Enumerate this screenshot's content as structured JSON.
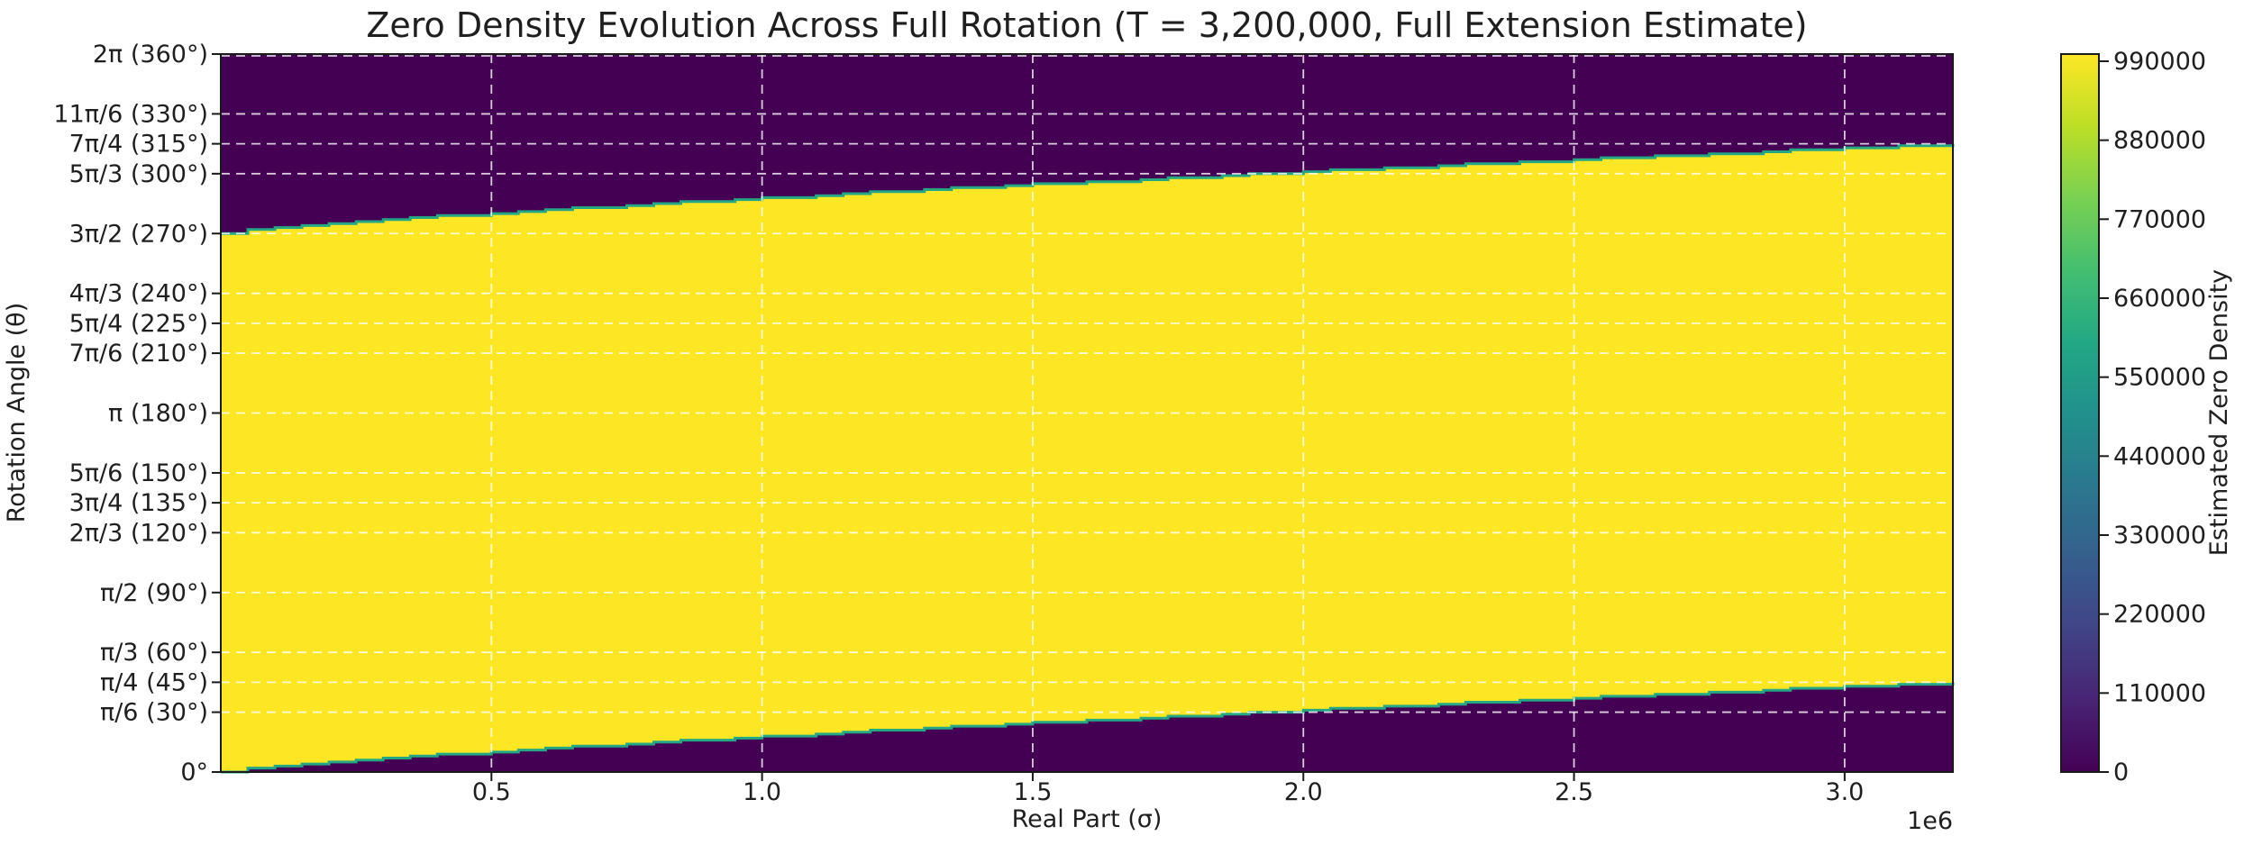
{
  "chart_data": {
    "type": "heatmap",
    "title": "Zero Density Evolution Across Full Rotation (T = 3,200,000, Full Extension Estimate)",
    "xlabel": "Real Part (σ)",
    "ylabel": "Rotation Angle (θ)",
    "x_axis": {
      "min": 0,
      "max": 3200000,
      "offset_label": "1e6",
      "ticks": [
        {
          "value": 500000,
          "label": "0.5"
        },
        {
          "value": 1000000,
          "label": "1.0"
        },
        {
          "value": 1500000,
          "label": "1.5"
        },
        {
          "value": 2000000,
          "label": "2.0"
        },
        {
          "value": 2500000,
          "label": "2.5"
        },
        {
          "value": 3000000,
          "label": "3.0"
        }
      ]
    },
    "y_axis": {
      "min_deg": 0,
      "max_deg": 360,
      "ticks": [
        {
          "deg": 0,
          "label": "0°"
        },
        {
          "deg": 30,
          "label": "π/6 (30°)"
        },
        {
          "deg": 45,
          "label": "π/4 (45°)"
        },
        {
          "deg": 60,
          "label": "π/3 (60°)"
        },
        {
          "deg": 90,
          "label": "π/2 (90°)"
        },
        {
          "deg": 120,
          "label": "2π/3 (120°)"
        },
        {
          "deg": 135,
          "label": "3π/4 (135°)"
        },
        {
          "deg": 150,
          "label": "5π/6 (150°)"
        },
        {
          "deg": 180,
          "label": "π (180°)"
        },
        {
          "deg": 210,
          "label": "7π/6 (210°)"
        },
        {
          "deg": 225,
          "label": "5π/4 (225°)"
        },
        {
          "deg": 240,
          "label": "4π/3 (240°)"
        },
        {
          "deg": 270,
          "label": "3π/2 (270°)"
        },
        {
          "deg": 300,
          "label": "5π/3 (300°)"
        },
        {
          "deg": 315,
          "label": "7π/4 (315°)"
        },
        {
          "deg": 330,
          "label": "11π/6 (330°)"
        },
        {
          "deg": 360,
          "label": "2π (360°)"
        }
      ]
    },
    "colorbar": {
      "label": "Estimated Zero Density",
      "vmin": 0,
      "vmax": 1000000,
      "colormap": "viridis",
      "ticks": [
        {
          "value": 0,
          "label": "0"
        },
        {
          "value": 110000,
          "label": "110000"
        },
        {
          "value": 220000,
          "label": "220000"
        },
        {
          "value": 330000,
          "label": "330000"
        },
        {
          "value": 440000,
          "label": "440000"
        },
        {
          "value": 550000,
          "label": "550000"
        },
        {
          "value": 660000,
          "label": "660000"
        },
        {
          "value": 770000,
          "label": "770000"
        },
        {
          "value": 880000,
          "label": "880000"
        },
        {
          "value": 990000,
          "label": "990000"
        }
      ],
      "gradient_stops": [
        {
          "offset": 0.0,
          "color": "#440154"
        },
        {
          "offset": 0.1,
          "color": "#482475"
        },
        {
          "offset": 0.2,
          "color": "#414487"
        },
        {
          "offset": 0.3,
          "color": "#355f8d"
        },
        {
          "offset": 0.4,
          "color": "#2a788e"
        },
        {
          "offset": 0.5,
          "color": "#21918c"
        },
        {
          "offset": 0.6,
          "color": "#22a884"
        },
        {
          "offset": 0.7,
          "color": "#44bf70"
        },
        {
          "offset": 0.8,
          "color": "#7ad151"
        },
        {
          "offset": 0.9,
          "color": "#bddf26"
        },
        {
          "offset": 1.0,
          "color": "#fde725"
        }
      ]
    },
    "band": {
      "lower_boundary_deg": {
        "start": 0,
        "end": 45
      },
      "upper_boundary_deg": {
        "start": 270,
        "end": 315
      },
      "curve_exponent": 0.8,
      "inside_value": 990000,
      "outside_value": 0
    },
    "grid": {
      "visible": true,
      "style": "dashed"
    }
  },
  "colors": {
    "high": "#fde725",
    "low": "#440154",
    "band_edge": "#25a784",
    "grid": "#ffffff",
    "text": "#1f1f1f",
    "spine": "#1a1a1a",
    "background": "#ffffff"
  }
}
